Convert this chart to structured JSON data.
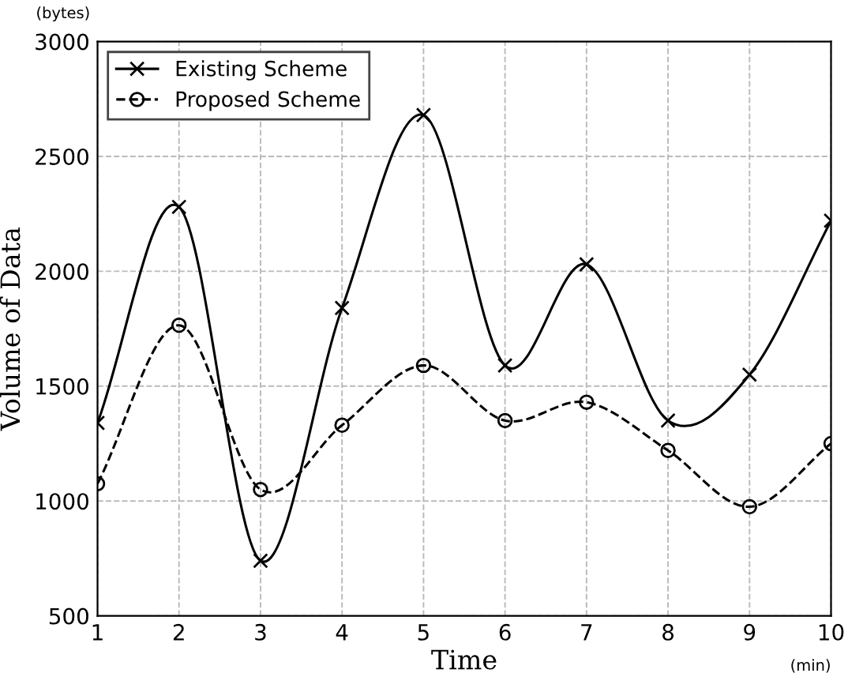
{
  "chart_data": {
    "type": "line",
    "xlabel": "Time",
    "ylabel": "Volume of Data",
    "x": [
      1,
      2,
      3,
      4,
      5,
      6,
      7,
      8,
      9,
      10
    ],
    "series": [
      {
        "name": "Existing Scheme",
        "color": "#000000",
        "marker": "cross",
        "line_style": "solid",
        "values": [
          1340,
          2280,
          740,
          1840,
          2680,
          1590,
          2030,
          1350,
          1550,
          2220
        ]
      },
      {
        "name": "Proposed Scheme",
        "color": "#000000",
        "marker": "circle",
        "line_style": "dashed",
        "values": [
          1075,
          1765,
          1050,
          1330,
          1590,
          1350,
          1430,
          1220,
          975,
          1250
        ]
      }
    ],
    "xlim": [
      1,
      10
    ],
    "xticks": [
      1,
      2,
      3,
      4,
      5,
      6,
      7,
      8,
      9,
      10
    ],
    "ylim": [
      500,
      3000
    ],
    "yticks": [
      500,
      1000,
      1500,
      2000,
      2500,
      3000
    ],
    "grid": true,
    "legend": "top left",
    "annotations": [
      "(bytes)",
      "(min)"
    ]
  }
}
